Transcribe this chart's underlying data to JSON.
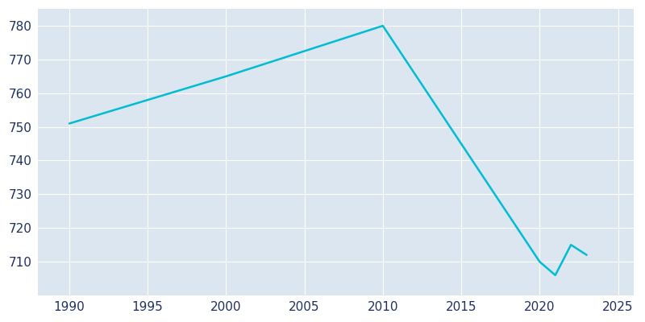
{
  "years": [
    1990,
    2000,
    2010,
    2020,
    2021,
    2022,
    2023
  ],
  "population": [
    751,
    765,
    780,
    710,
    706,
    715,
    712
  ],
  "line_color": "#00BCD4",
  "fig_bg_color": "#ffffff",
  "plot_bg_color": "#dce6f0",
  "grid_color": "#ffffff",
  "text_color": "#1f3060",
  "xlim": [
    1988,
    2026
  ],
  "ylim": [
    700,
    785
  ],
  "xticks": [
    1990,
    1995,
    2000,
    2005,
    2010,
    2015,
    2020,
    2025
  ],
  "yticks": [
    710,
    720,
    730,
    740,
    750,
    760,
    770,
    780
  ],
  "figsize": [
    8.0,
    4.0
  ],
  "dpi": 100,
  "linewidth": 1.8,
  "tick_labelsize": 11
}
